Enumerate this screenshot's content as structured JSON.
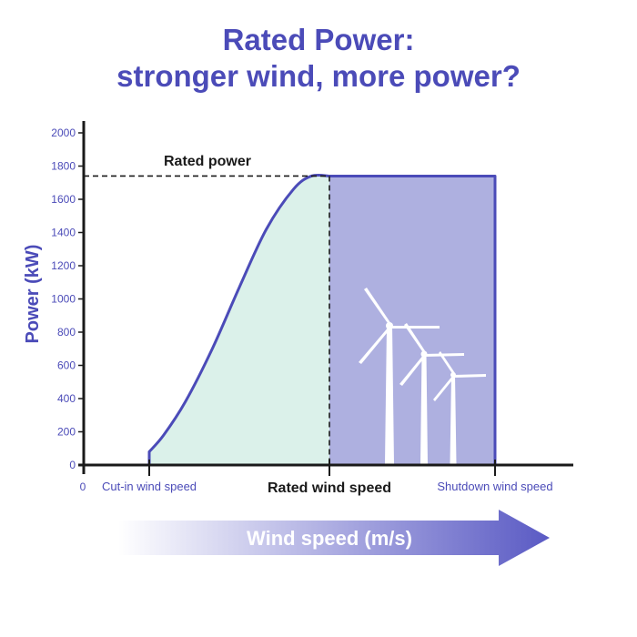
{
  "chart_data": {
    "type": "area",
    "title_lines": [
      "Rated Power:",
      "stronger wind, more power?"
    ],
    "ylabel": "Power (kW)",
    "ylim": [
      0,
      2000
    ],
    "yticks": [
      0,
      200,
      400,
      600,
      800,
      1000,
      1200,
      1400,
      1600,
      1800,
      2000
    ],
    "grid": false,
    "x_origin_label": "0",
    "x_markers": [
      {
        "label": "Cut-in wind speed",
        "style": "small"
      },
      {
        "label": "Rated wind speed",
        "style": "bold"
      },
      {
        "label": "Shutdown wind speed",
        "style": "small"
      }
    ],
    "curve": {
      "x": [
        0,
        0.08,
        0.2,
        0.35,
        0.5,
        0.65,
        0.8,
        0.9,
        1.0
      ],
      "y": [
        80,
        180,
        380,
        700,
        1070,
        1420,
        1660,
        1740,
        1740
      ]
    },
    "rated_power_kw": 1740,
    "rated_power_label": "Rated power",
    "xlabel": "Wind speed (m/s)",
    "colors": {
      "accent": "#4b4bb8",
      "ramp_fill": "#dbf1ea",
      "rated_fill": "#aeb0e0",
      "curve": "#4b4bb8",
      "axis": "#1a1a1a"
    }
  },
  "icons": [
    "wind-turbine-icon"
  ]
}
